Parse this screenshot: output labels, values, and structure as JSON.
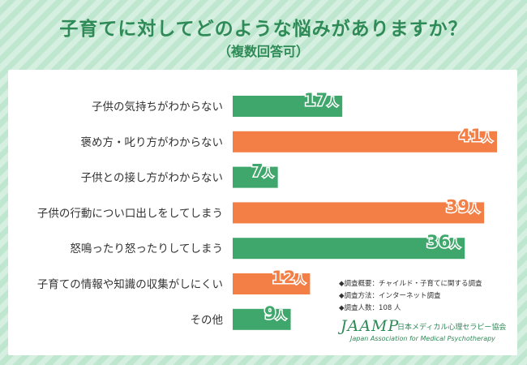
{
  "title": "子育てに対してどのような悩みがありますか？",
  "subtitle": "（複数回答可）",
  "colors": {
    "green": "#3fa76b",
    "orange": "#f37f47",
    "value_outline": "#ffffff"
  },
  "chart_data": {
    "type": "bar",
    "orientation": "horizontal",
    "categories": [
      "子供の気持ちがわからない",
      "褒め方・叱り方がわからない",
      "子供との接し方がわからない",
      "子供の行動につい口出しをしてしまう",
      "怒鳴ったり怒ったりしてしまう",
      "子育ての情報や知識の収集がしにくい",
      "その他"
    ],
    "values": [
      17,
      41,
      7,
      39,
      36,
      12,
      9
    ],
    "bar_colors": [
      "#3fa76b",
      "#f37f47",
      "#3fa76b",
      "#f37f47",
      "#3fa76b",
      "#f37f47",
      "#3fa76b"
    ],
    "unit": "人",
    "xlim": [
      0,
      41
    ],
    "grid": false,
    "legend": "none"
  },
  "notes": [
    "◆調査概要：チャイルド・子育てに関する調査",
    "◆調査方法：インターネット調査",
    "◆調査人数：108 人"
  ],
  "logo": {
    "mark": "JAAMP",
    "name_jp": "日本メディカル心理セラピー協会",
    "name_en": "Japan Association for Medical Psychotherapy"
  }
}
